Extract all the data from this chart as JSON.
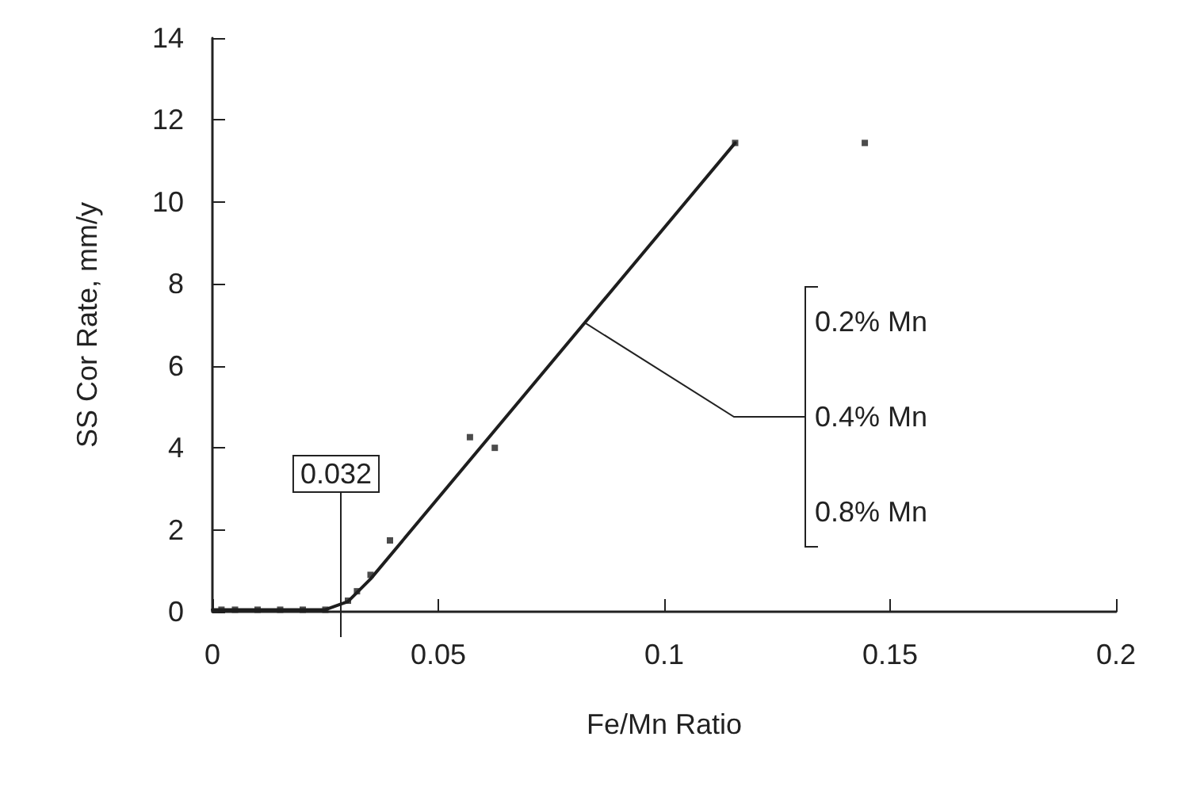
{
  "chart_data": {
    "type": "scatter",
    "xlabel": "Fe/Mn Ratio",
    "ylabel": "SS Cor Rate, mm/y",
    "xlim": [
      0,
      0.2
    ],
    "xticks": [
      0,
      0.05,
      0.1,
      0.15,
      0.2
    ],
    "ylim": [
      0,
      14
    ],
    "yticks": [
      0,
      2,
      4,
      6,
      8,
      10,
      12,
      14
    ],
    "grid": false,
    "series": [
      {
        "color": "#1e1e1e",
        "marker": "square",
        "x": [
          0.002,
          0.005,
          0.01,
          0.015,
          0.02,
          0.025,
          0.03,
          0.032,
          0.035,
          0.0393,
          0.057,
          0.0625,
          0.1157,
          0.1444
        ],
        "values": [
          0.05,
          0.05,
          0.05,
          0.05,
          0.05,
          0.05,
          0.27,
          0.5,
          0.9,
          1.74,
          4.26,
          4.0,
          11.44,
          11.44
        ]
      },
      {
        "type": "line",
        "color": "#1e1e1e",
        "marker": "none",
        "line_style": "solid",
        "x": [
          0,
          0.025,
          0.03,
          0.035,
          0.1157
        ],
        "values": [
          0.05,
          0.05,
          0.25,
          0.8,
          11.44
        ]
      }
    ],
    "annotations": [
      "0.032",
      "0.2% Mn",
      {
        "text": "0.4% Mn",
        "x": 0.0826,
        "y": 7.04
      },
      "0.8% Mn"
    ]
  }
}
